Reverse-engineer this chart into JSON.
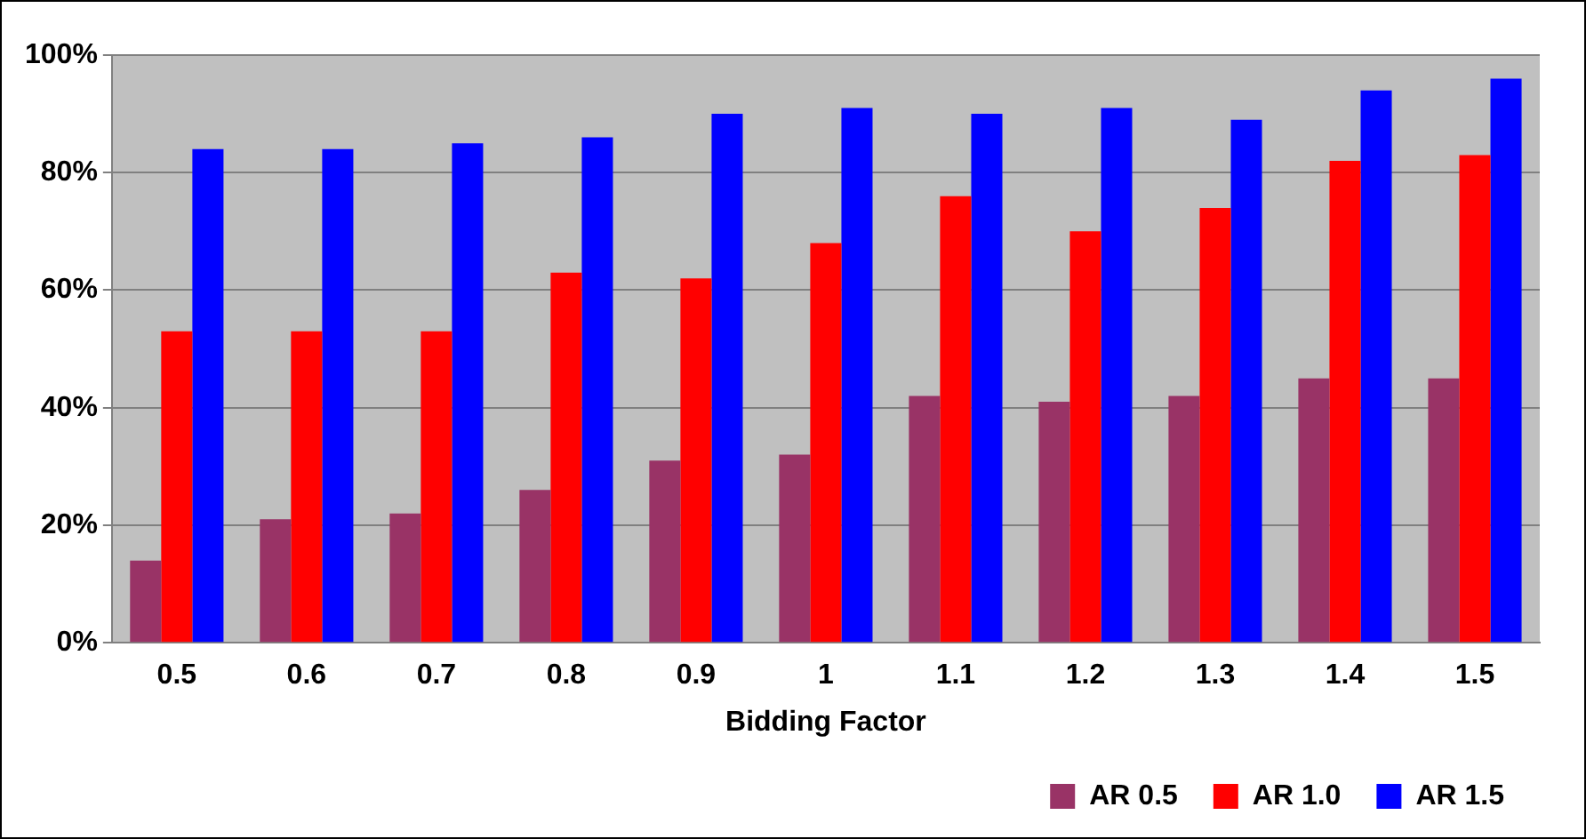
{
  "chart_data": {
    "type": "bar",
    "xlabel": "Bidding Factor",
    "categories": [
      "0.5",
      "0.6",
      "0.7",
      "0.8",
      "0.9",
      "1",
      "1.1",
      "1.2",
      "1.3",
      "1.4",
      "1.5"
    ],
    "series": [
      {
        "name": "AR 0.5",
        "color": "#993366",
        "values": [
          14,
          21,
          22,
          26,
          31,
          32,
          42,
          41,
          42,
          45,
          45
        ]
      },
      {
        "name": "AR 1.0",
        "color": "#ff0000",
        "values": [
          53,
          53,
          53,
          63,
          62,
          68,
          76,
          70,
          74,
          82,
          83
        ]
      },
      {
        "name": "AR 1.5",
        "color": "#0000ff",
        "values": [
          84,
          84,
          85,
          86,
          90,
          91,
          90,
          91,
          89,
          94,
          96
        ]
      }
    ],
    "ylim": [
      0,
      100
    ],
    "yticks": [
      {
        "value": 0,
        "label": "0%"
      },
      {
        "value": 20,
        "label": "20%"
      },
      {
        "value": 40,
        "label": "40%"
      },
      {
        "value": 60,
        "label": "60%"
      },
      {
        "value": 80,
        "label": "80%"
      },
      {
        "value": 100,
        "label": "100%"
      }
    ],
    "grid": "y",
    "legend": "bottom right"
  }
}
